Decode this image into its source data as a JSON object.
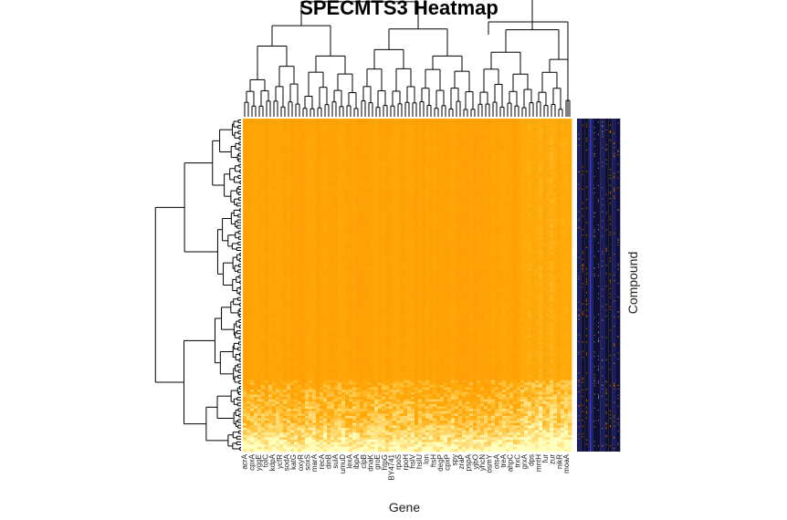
{
  "chart_data": {
    "type": "heatmap",
    "title": "SPECMTS3 Heatmap",
    "xlabel": "Gene",
    "ylabel": "Compound",
    "color_scale": {
      "low": "#ff8a00",
      "mid": "#ffa500",
      "high": "#ffffc8"
    },
    "side_bar_colors": [
      "#1a1d5e",
      "#0f1033",
      "#ff9900"
    ],
    "x_tick_labels": [
      "acrA",
      "cpxA",
      "yggE",
      "tolC",
      "kdpA",
      "ycfR",
      "sodA",
      "katG",
      "oxyR",
      "soxS",
      "marA",
      "recA",
      "dinB",
      "sulA",
      "umuD",
      "lexA",
      "ibpA",
      "clpB",
      "dnaK",
      "groE",
      "htpG",
      "BY4741",
      "rpoS",
      "rpoH",
      "hslV",
      "hslU",
      "lon",
      "ftsH",
      "degP",
      "cpxP",
      "spy",
      "zraP",
      "pspA",
      "yjbO",
      "yhcN",
      "osmY",
      "otsA",
      "treA",
      "ahpC",
      "trxC",
      "grxA",
      "dps",
      "mntH",
      "fur",
      "zur",
      "nikR",
      "moaA"
    ]
  }
}
